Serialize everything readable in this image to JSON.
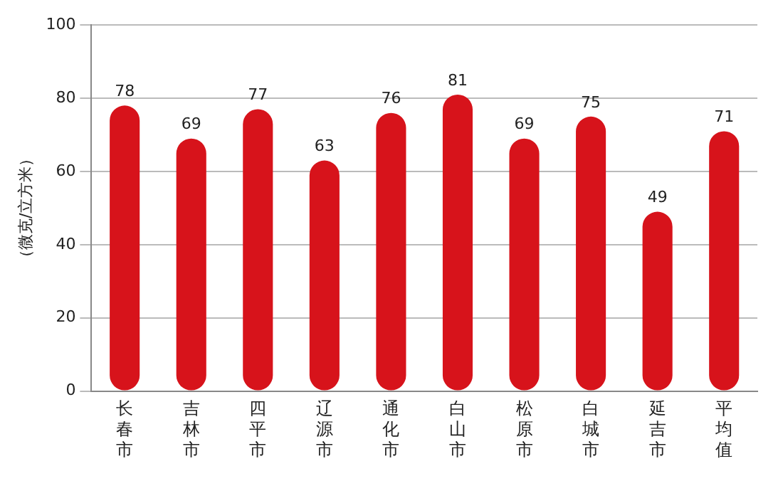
{
  "chart_data": {
    "type": "bar",
    "ylabel": "（微克/立方米）",
    "categories": [
      "长春市",
      "吉林市",
      "四平市",
      "辽源市",
      "通化市",
      "白山市",
      "松原市",
      "白城市",
      "延吉市",
      "平均值"
    ],
    "values": [
      78,
      69,
      77,
      63,
      76,
      81,
      69,
      75,
      49,
      71
    ],
    "color": "#d7131b",
    "ylim": [
      0,
      100
    ],
    "yticks": [
      0,
      20,
      40,
      60,
      80,
      100
    ],
    "grid": "y",
    "data_labels": true
  }
}
